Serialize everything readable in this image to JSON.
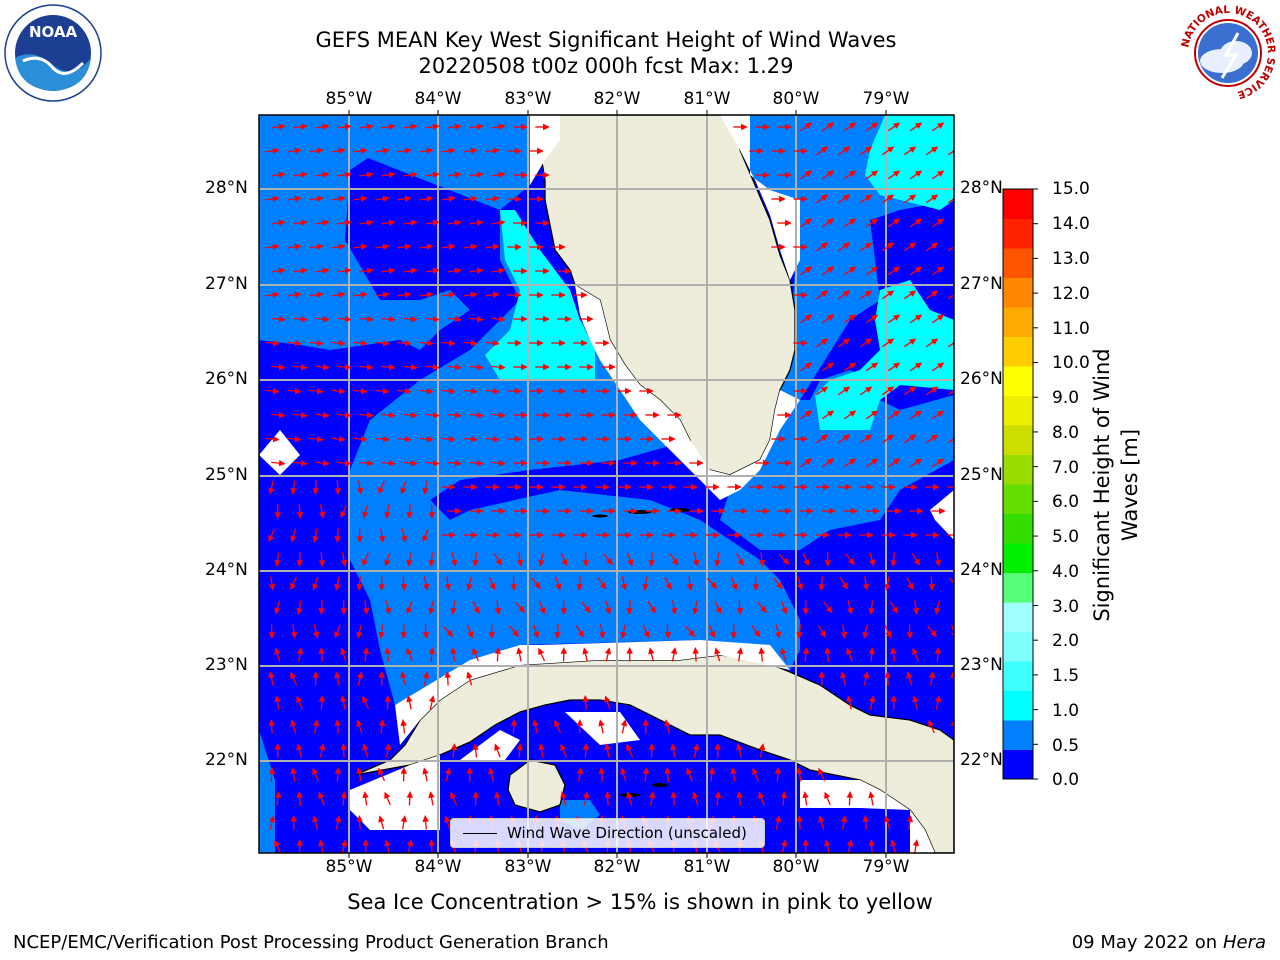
{
  "title": {
    "line1": "GEFS MEAN Key West Significant Height of Wind Waves",
    "line2": "20220508 t00z 000h fcst   Max: 1.29"
  },
  "axes": {
    "lon_labels": [
      "85°W",
      "84°W",
      "83°W",
      "82°W",
      "81°W",
      "80°W",
      "79°W"
    ],
    "lat_labels": [
      "28°N",
      "27°N",
      "26°N",
      "25°N",
      "24°N",
      "23°N",
      "22°N"
    ]
  },
  "colorbar": {
    "title": "Significant Height of Wind Waves [m]",
    "labels": [
      "15.0",
      "14.0",
      "13.0",
      "12.0",
      "11.0",
      "10.0",
      "9.0",
      "8.0",
      "7.0",
      "6.0",
      "5.0",
      "4.0",
      "3.0",
      "2.0",
      "1.5",
      "1.0",
      "0.5",
      "0.0"
    ],
    "colors": [
      "#0000ff",
      "#0080ff",
      "#00ffff",
      "#40ffff",
      "#80ffff",
      "#a0ffff",
      "#55ff77",
      "#00ee00",
      "#33dd00",
      "#66dd00",
      "#99dd00",
      "#ccdd00",
      "#eeee00",
      "#ffff00",
      "#ffcc00",
      "#ffaa00",
      "#ff8800",
      "#ff5500",
      "#ff2200",
      "#ff0000"
    ]
  },
  "legend": {
    "label": "Wind Wave Direction (unscaled)"
  },
  "notes": {
    "sea_ice": "Sea Ice Concentration > 15% is shown in pink to yellow",
    "producer": "NCEP/EMC/Verification Post Processing Product Generation Branch",
    "date": "09 May 2022 on",
    "machine": "Hera"
  },
  "logos": {
    "left": "NOAA",
    "right": "NATIONAL WEATHER SERVICE"
  },
  "colors": {
    "land": "#eeeddc",
    "arrow": "#ff0000",
    "grid": "#b0b0b0"
  }
}
